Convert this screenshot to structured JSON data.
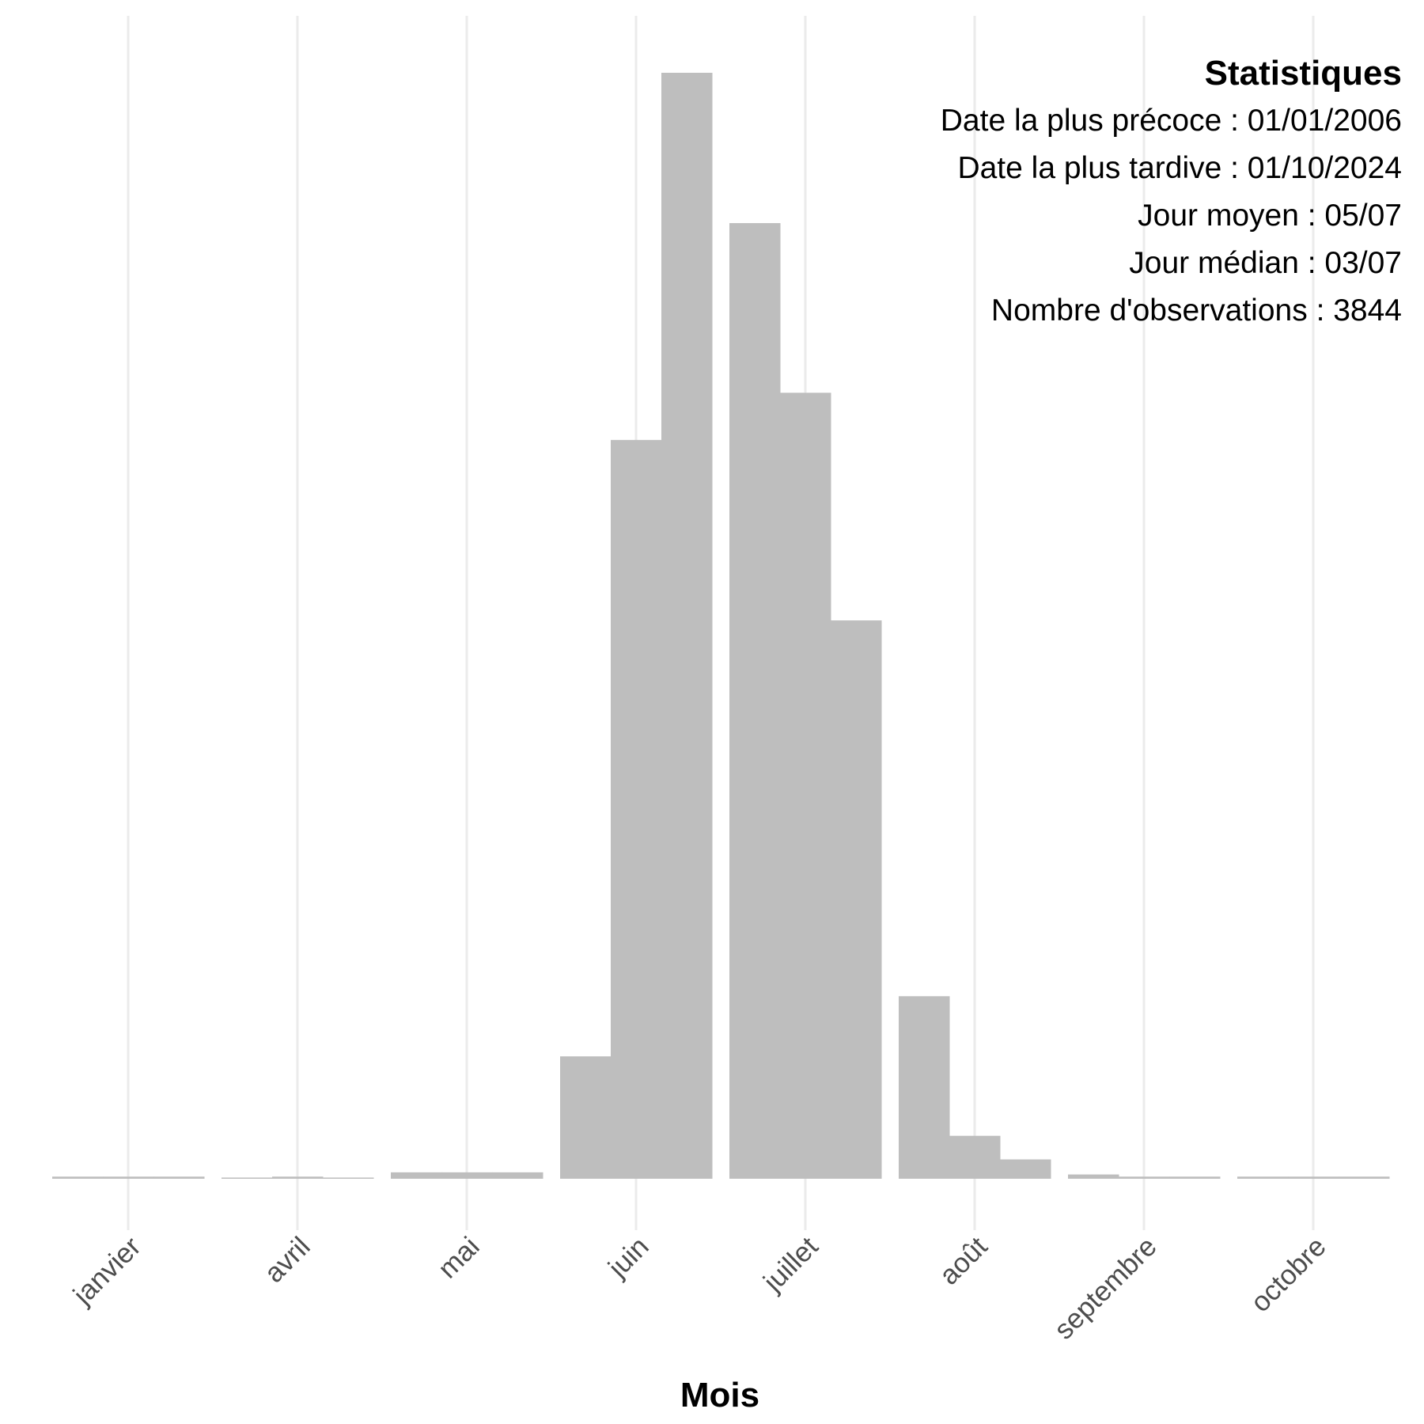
{
  "chart_data": {
    "type": "bar",
    "xlabel": "Mois",
    "ylabel": "",
    "x_tick_labels": [
      "janvier",
      "avril",
      "mai",
      "juin",
      "juillet",
      "août",
      "septembre",
      "octobre"
    ],
    "bins": [
      {
        "month": "janvier",
        "values": [
          1,
          1,
          1
        ]
      },
      {
        "month": "avril",
        "values": [
          0.5,
          1,
          0.5
        ]
      },
      {
        "month": "mai",
        "values": [
          3,
          3,
          3
        ]
      },
      {
        "month": "juin",
        "values": [
          57,
          344,
          515
        ]
      },
      {
        "month": "juillet",
        "values": [
          445,
          366,
          260
        ]
      },
      {
        "month": "août",
        "values": [
          85,
          20,
          9
        ]
      },
      {
        "month": "septembre",
        "values": [
          2,
          1,
          1
        ]
      },
      {
        "month": "octobre",
        "values": [
          1,
          1,
          1
        ]
      }
    ],
    "ylim": [
      0,
      515
    ],
    "grid": {
      "vertical_major": true,
      "horizontal": false
    },
    "bar_color": "#bebebe",
    "stats_title": "Statistiques",
    "stats_lines": [
      "Date la plus précoce : 01/01/2006",
      "Date la plus tardive : 01/10/2024",
      "Jour moyen : 05/07",
      "Jour médian : 03/07",
      "Nombre d'observations : 3844"
    ],
    "stats_placement": "top-right"
  }
}
